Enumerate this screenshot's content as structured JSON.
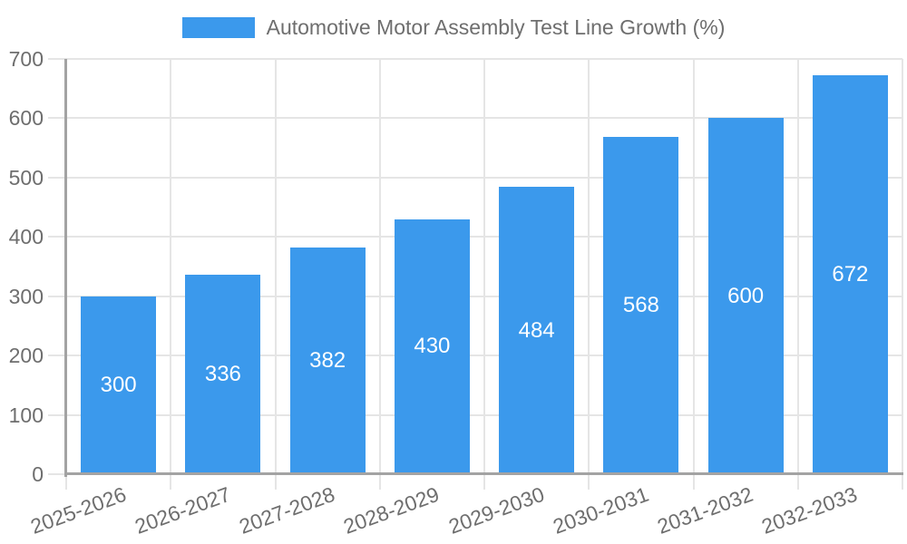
{
  "chart_data": {
    "type": "bar",
    "title": "Automotive Motor Assembly Test Line Growth (%)",
    "categories": [
      "2025-2026",
      "2026-2027",
      "2027-2028",
      "2028-2029",
      "2029-2030",
      "2030-2031",
      "2031-2032",
      "2032-2033"
    ],
    "values": [
      300,
      336,
      382,
      430,
      484,
      568,
      600,
      672
    ],
    "series": [
      {
        "name": "Automotive Motor Assembly Test Line Growth (%)",
        "values": [
          300,
          336,
          382,
          430,
          484,
          568,
          600,
          672
        ]
      }
    ],
    "xlabel": "",
    "ylabel": "",
    "ylim": [
      0,
      700
    ],
    "ytick_step": 100,
    "yticks": [
      0,
      100,
      200,
      300,
      400,
      500,
      600,
      700
    ],
    "grid": true,
    "legend_position": "top-center",
    "value_labels": "inside-center",
    "x_label_rotation_deg": -20,
    "colors": {
      "bar": "#3b99ec",
      "bar_label": "#ffffff",
      "axis_text": "#6e6e6e",
      "legend_text": "#6e6e6e",
      "gridline": "#e5e5e5",
      "axis_line": "#a3a3a3",
      "background": "#ffffff"
    }
  }
}
